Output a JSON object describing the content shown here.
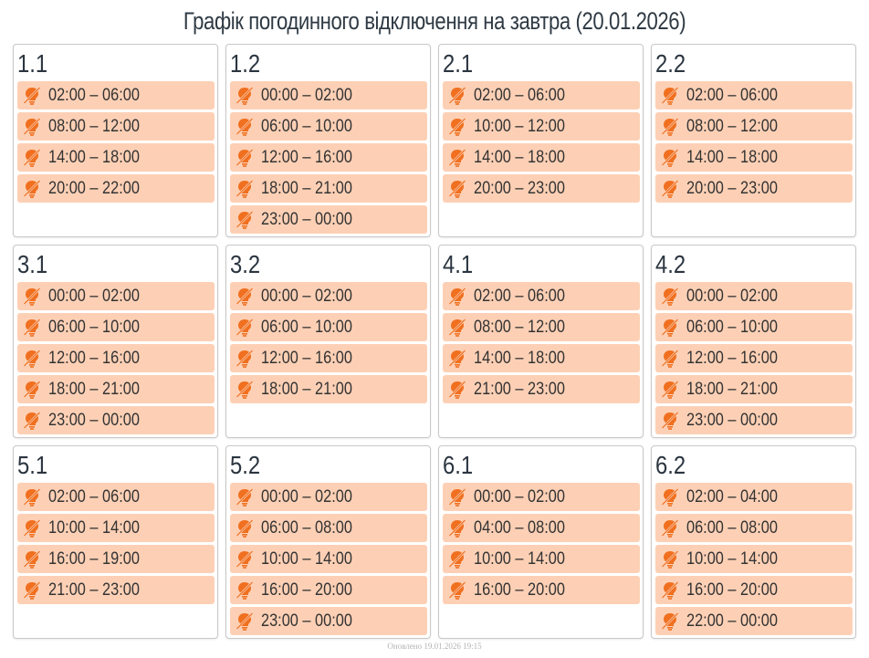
{
  "title": "Графік погодинного відключення на завтра (20.01.2026)",
  "icon_name": "bulb-off-icon",
  "colors": {
    "slot_bg": "#fdd0b5",
    "icon": "#f07020"
  },
  "groups": [
    {
      "name": "1.1",
      "slots": [
        "02:00 – 06:00",
        "08:00 – 12:00",
        "14:00 – 18:00",
        "20:00 – 22:00"
      ]
    },
    {
      "name": "1.2",
      "slots": [
        "00:00 – 02:00",
        "06:00 – 10:00",
        "12:00 – 16:00",
        "18:00 – 21:00",
        "23:00 – 00:00"
      ]
    },
    {
      "name": "2.1",
      "slots": [
        "02:00 – 06:00",
        "10:00 – 12:00",
        "14:00 – 18:00",
        "20:00 – 23:00"
      ]
    },
    {
      "name": "2.2",
      "slots": [
        "02:00 – 06:00",
        "08:00 – 12:00",
        "14:00 – 18:00",
        "20:00 – 23:00"
      ]
    },
    {
      "name": "3.1",
      "slots": [
        "00:00 – 02:00",
        "06:00 – 10:00",
        "12:00 – 16:00",
        "18:00 – 21:00",
        "23:00 – 00:00"
      ]
    },
    {
      "name": "3.2",
      "slots": [
        "00:00 – 02:00",
        "06:00 – 10:00",
        "12:00 – 16:00",
        "18:00 – 21:00"
      ]
    },
    {
      "name": "4.1",
      "slots": [
        "02:00 – 06:00",
        "08:00 – 12:00",
        "14:00 – 18:00",
        "21:00 – 23:00"
      ]
    },
    {
      "name": "4.2",
      "slots": [
        "00:00 – 02:00",
        "06:00 – 10:00",
        "12:00 – 16:00",
        "18:00 – 21:00",
        "23:00 – 00:00"
      ]
    },
    {
      "name": "5.1",
      "slots": [
        "02:00 – 06:00",
        "10:00 – 14:00",
        "16:00 – 19:00",
        "21:00 – 23:00"
      ]
    },
    {
      "name": "5.2",
      "slots": [
        "00:00 – 02:00",
        "06:00 – 08:00",
        "10:00 – 14:00",
        "16:00 – 20:00",
        "23:00 – 00:00"
      ]
    },
    {
      "name": "6.1",
      "slots": [
        "00:00 – 02:00",
        "04:00 – 08:00",
        "10:00 – 14:00",
        "16:00 – 20:00"
      ]
    },
    {
      "name": "6.2",
      "slots": [
        "02:00 – 04:00",
        "06:00 – 08:00",
        "10:00 – 14:00",
        "16:00 – 20:00",
        "22:00 – 00:00"
      ]
    }
  ],
  "footer": "Оновлено 19.01.2026 19:15"
}
